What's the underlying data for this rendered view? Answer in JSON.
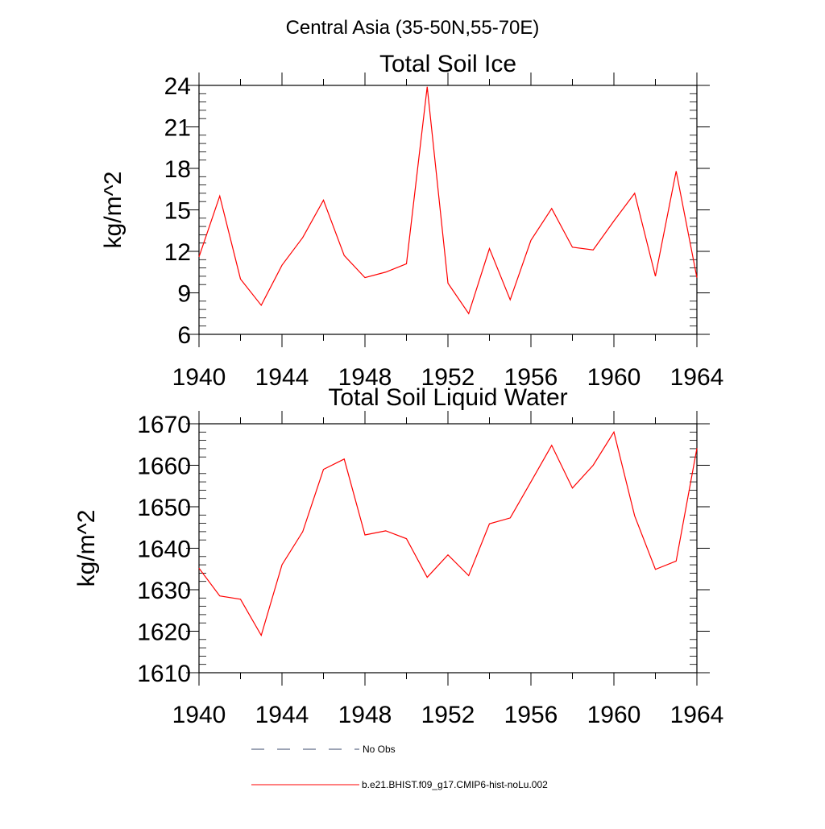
{
  "figure_title": "Central Asia (35-50N,55-70E)",
  "legend": [
    {
      "label": "No Obs",
      "style": "dashed",
      "color": "#3a4a6b"
    },
    {
      "label": "b.e21.BHIST.f09_g17.CMIP6-hist-noLu.002",
      "style": "solid",
      "color": "#ff0000"
    }
  ],
  "chart_data": [
    {
      "type": "line",
      "title": "Total Soil Ice",
      "ylabel": "kg/m^2",
      "xlabel": "",
      "xlim": [
        1940,
        1964
      ],
      "ylim": [
        6,
        24
      ],
      "xticks": [
        1940,
        1944,
        1948,
        1952,
        1956,
        1960,
        1964
      ],
      "yticks": [
        6,
        9,
        12,
        15,
        18,
        21,
        24
      ],
      "x": [
        1940,
        1941,
        1942,
        1943,
        1944,
        1945,
        1946,
        1947,
        1948,
        1949,
        1950,
        1951,
        1952,
        1953,
        1954,
        1955,
        1956,
        1957,
        1958,
        1959,
        1960,
        1961,
        1962,
        1963,
        1964
      ],
      "series": [
        {
          "name": "b.e21.BHIST.f09_g17.CMIP6-hist-noLu.002",
          "color": "#ff0000",
          "values": [
            11.6,
            16.0,
            10.0,
            8.1,
            11.0,
            13.0,
            15.7,
            11.7,
            10.1,
            10.5,
            11.1,
            23.9,
            9.7,
            7.5,
            12.2,
            8.5,
            12.8,
            15.1,
            12.3,
            12.1,
            14.2,
            16.2,
            10.2,
            17.8,
            10.1
          ]
        }
      ]
    },
    {
      "type": "line",
      "title": "Total Soil Liquid Water",
      "ylabel": "kg/m^2",
      "xlabel": "",
      "xlim": [
        1940,
        1964
      ],
      "ylim": [
        1610,
        1670
      ],
      "xticks": [
        1940,
        1944,
        1948,
        1952,
        1956,
        1960,
        1964
      ],
      "yticks": [
        1610,
        1620,
        1630,
        1640,
        1650,
        1660,
        1670
      ],
      "x": [
        1940,
        1941,
        1942,
        1943,
        1944,
        1945,
        1946,
        1947,
        1948,
        1949,
        1950,
        1951,
        1952,
        1953,
        1954,
        1955,
        1956,
        1957,
        1958,
        1959,
        1960,
        1961,
        1962,
        1963,
        1964
      ],
      "series": [
        {
          "name": "b.e21.BHIST.f09_g17.CMIP6-hist-noLu.002",
          "color": "#ff0000",
          "values": [
            1635.2,
            1628.5,
            1627.7,
            1619.0,
            1636.0,
            1644.0,
            1659.0,
            1661.5,
            1643.2,
            1644.2,
            1642.3,
            1633.0,
            1638.4,
            1633.4,
            1645.9,
            1647.3,
            1656.0,
            1664.8,
            1654.5,
            1660.0,
            1668.0,
            1647.8,
            1634.9,
            1636.9,
            1664.1
          ]
        }
      ]
    }
  ]
}
